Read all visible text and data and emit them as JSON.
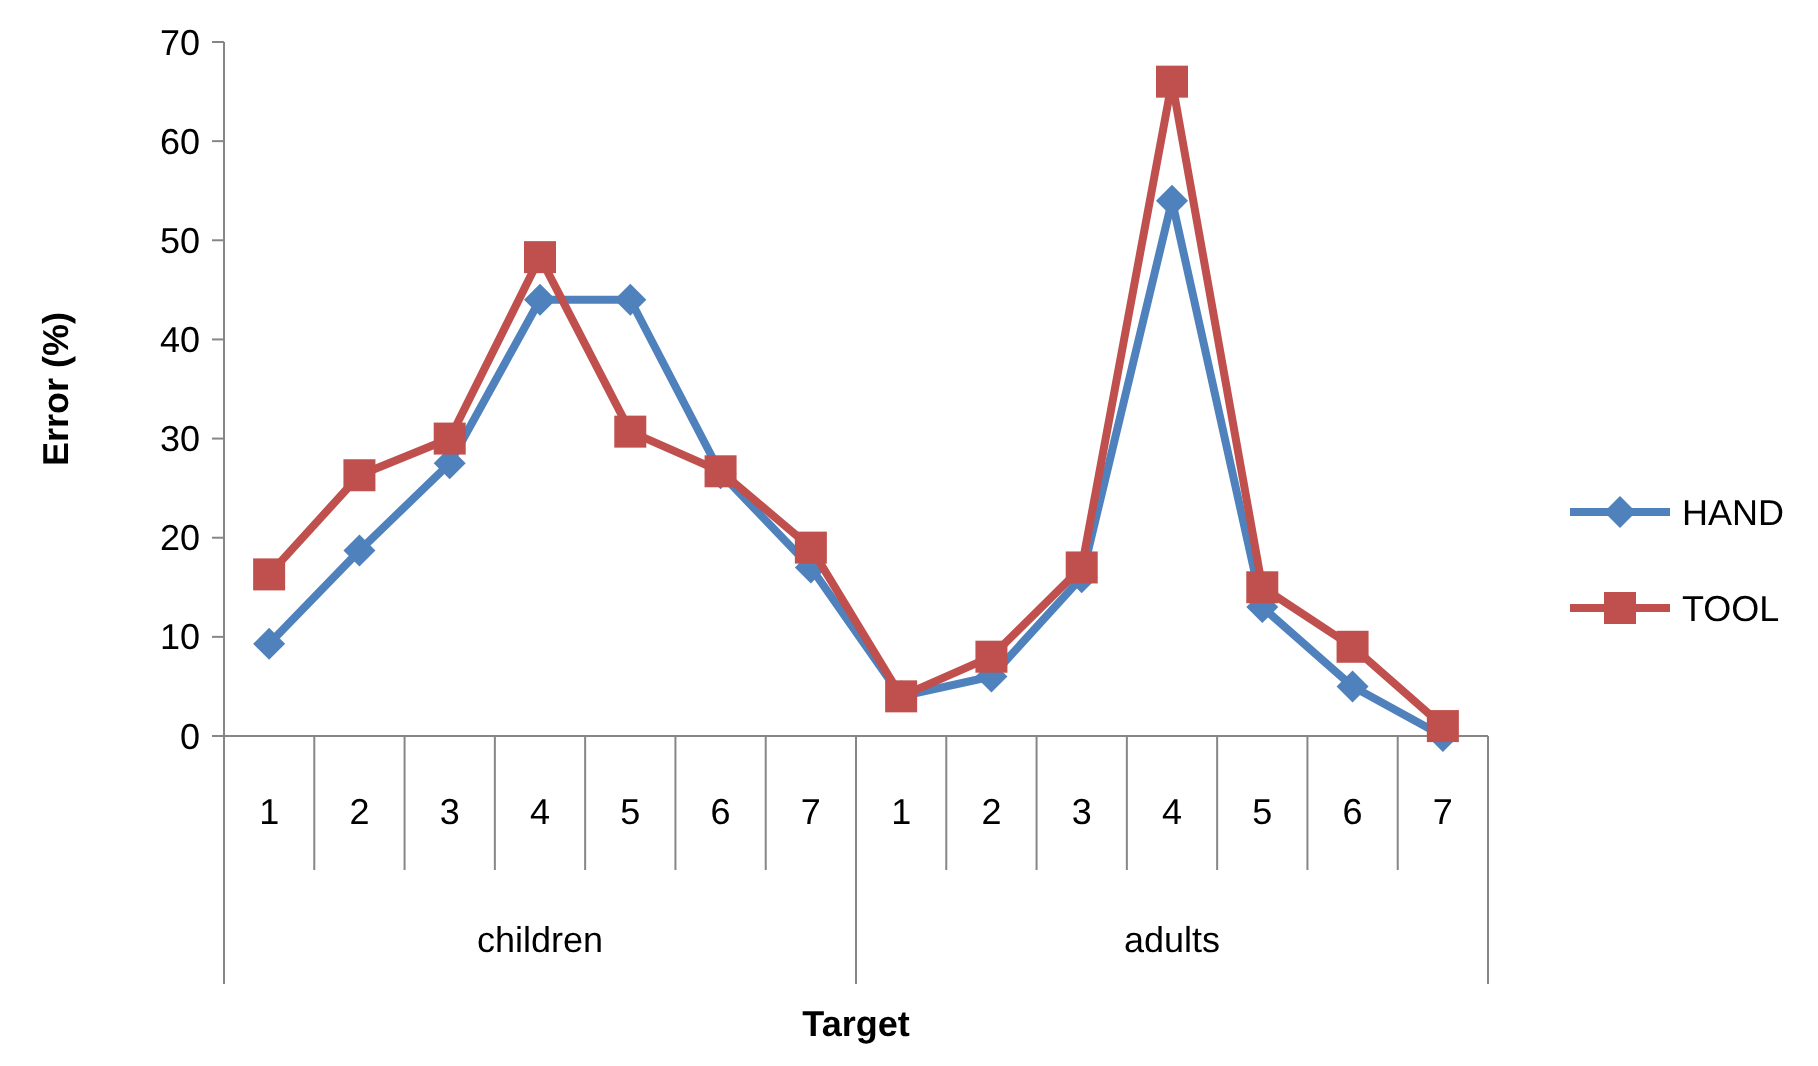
{
  "chart_data": {
    "type": "line",
    "xlabel": "Target",
    "ylabel": "Error (%)",
    "categories": [
      "1",
      "2",
      "3",
      "4",
      "5",
      "6",
      "7",
      "1",
      "2",
      "3",
      "4",
      "5",
      "6",
      "7"
    ],
    "annotations": [
      "children",
      "adults"
    ],
    "series": [
      {
        "name": "HAND",
        "color": "#4f81bd",
        "marker": "diamond",
        "values": [
          9.3,
          18.7,
          27.5,
          44,
          44,
          26.5,
          17,
          4,
          6,
          16,
          54,
          13,
          5,
          0
        ]
      },
      {
        "name": "TOOL",
        "color": "#c0504d",
        "marker": "square",
        "values": [
          16.3,
          26.3,
          30,
          48.3,
          30.7,
          26.7,
          19,
          4,
          8,
          17,
          66,
          15,
          9,
          1
        ]
      }
    ],
    "ylim": [
      0,
      70
    ],
    "yticks": [
      0,
      10,
      20,
      30,
      40,
      50,
      60,
      70
    ],
    "grid": false,
    "legend": "right",
    "line_style": "solid"
  }
}
